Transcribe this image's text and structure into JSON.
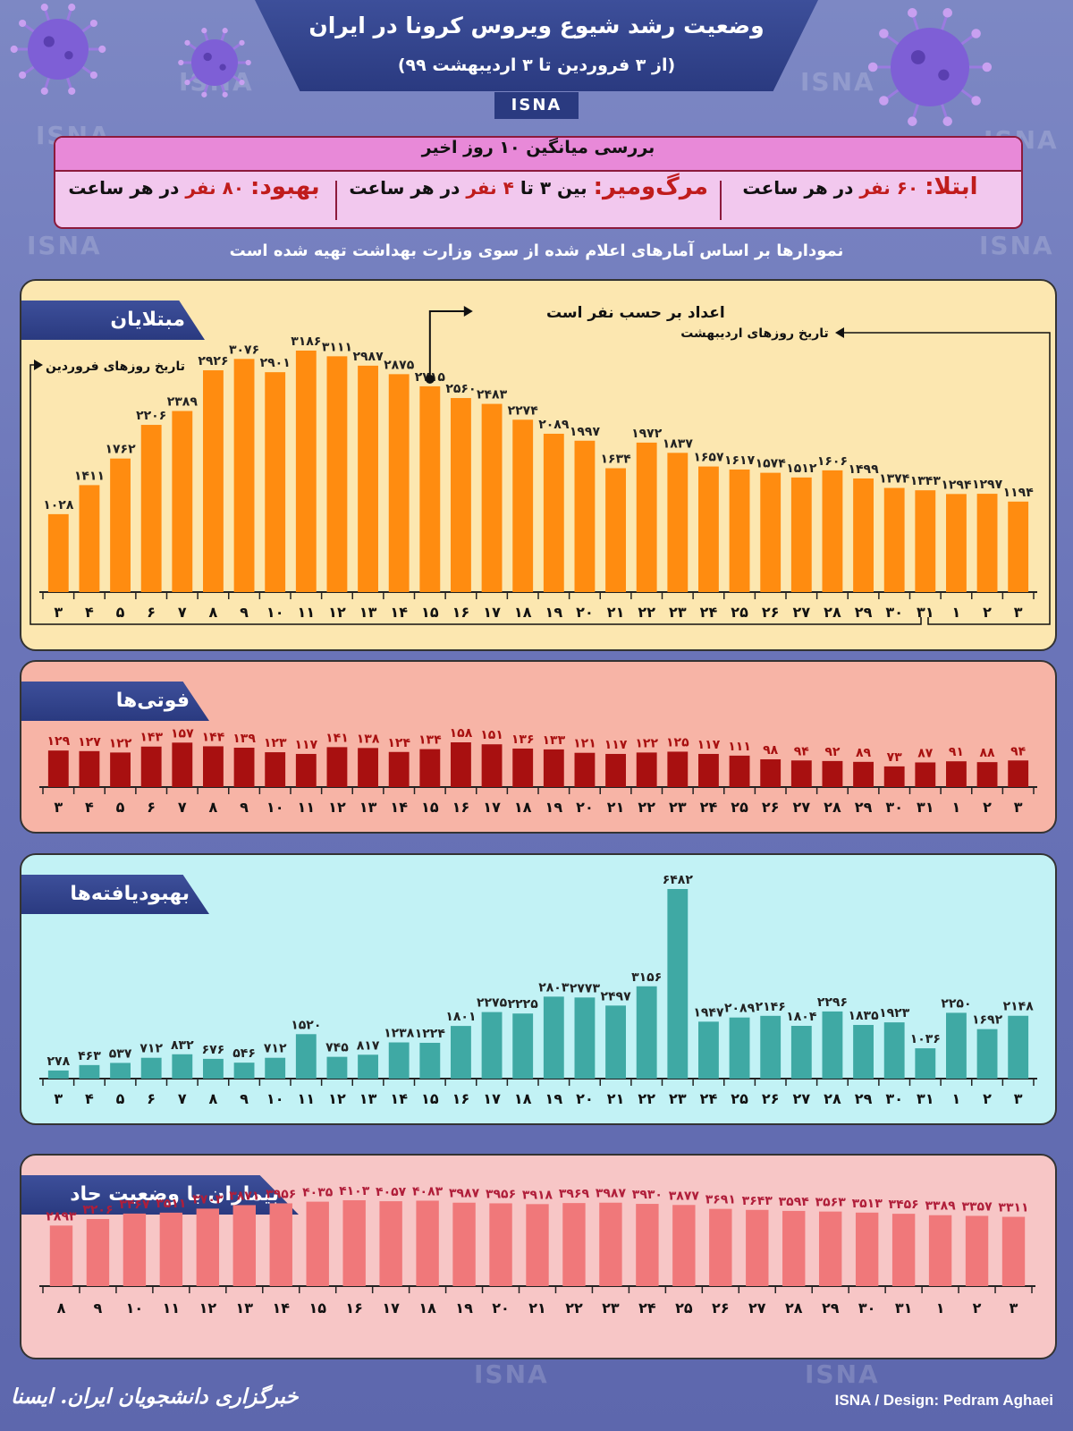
{
  "header": {
    "title": "وضعیت رشد شیوع ویروس کرونا در ایران",
    "subtitle": "(از ۳ فروردین تا ۳ اردیبهشت ۹۹)",
    "tab": "ISNA"
  },
  "watermark": "ISNA",
  "averages": {
    "title": "بررسی میانگین ۱۰ روز اخیر",
    "infection_label": "ابتلا:",
    "infection_value": "۶۰ نفر",
    "infection_unit": "در هر ساعت",
    "death_label": "مرگ‌ومیر:",
    "death_value_pre": "بین ۳ تا",
    "death_value": "۴ نفر",
    "death_unit": "در هر ساعت",
    "recovery_label": "بهبود:",
    "recovery_value": "۸۰ نفر",
    "recovery_unit": "در هر ساعت"
  },
  "note": "نمودارها بر اساس آمارهای اعلام شده از سوی وزارت بهداشت تهیه شده است",
  "annotations": {
    "numbers_per_person": "اعداد بر حسب نفر است",
    "farvardin_dates": "تاریخ روزهای فروردین",
    "ordibehesht_dates": "تاریخ روزهای اردیبهشت"
  },
  "footer": {
    "left": "خبرگزاری دانشجویان ایران. ایسنا",
    "right": "ISNA / Design: Pedram Aghaei"
  },
  "colors": {
    "infected": "#ff8c10",
    "deaths": "#a81010",
    "recovered": "#3fa9a4",
    "critical": "#f0787a",
    "infected_bg": "#fce7b0",
    "deaths_bg": "#f7b4a6",
    "recovered_bg": "#c2f2f5",
    "critical_bg": "#f7c6c6",
    "banner": "#2a3a80"
  },
  "chart_data": [
    {
      "type": "bar",
      "title": "مبتلایان",
      "categories": [
        "۳",
        "۴",
        "۵",
        "۶",
        "۷",
        "۸",
        "۹",
        "۱۰",
        "۱۱",
        "۱۲",
        "۱۳",
        "۱۴",
        "۱۵",
        "۱۶",
        "۱۷",
        "۱۸",
        "۱۹",
        "۲۰",
        "۲۱",
        "۲۲",
        "۲۳",
        "۲۴",
        "۲۵",
        "۲۶",
        "۲۷",
        "۲۸",
        "۲۹",
        "۳۰",
        "۳۱",
        "۱",
        "۲",
        "۳"
      ],
      "values": [
        1028,
        1411,
        1762,
        2206,
        2389,
        2926,
        3076,
        2901,
        3186,
        3111,
        2987,
        2875,
        2715,
        2560,
        2483,
        2274,
        2089,
        1997,
        1634,
        1972,
        1837,
        1657,
        1617,
        1574,
        1512,
        1606,
        1499,
        1374,
        1343,
        1294,
        1297,
        1194
      ],
      "labels": [
        "۱۰۲۸",
        "۱۴۱۱",
        "۱۷۶۲",
        "۲۲۰۶",
        "۲۳۸۹",
        "۲۹۲۶",
        "۳۰۷۶",
        "۲۹۰۱",
        "۳۱۸۶",
        "۳۱۱۱",
        "۲۹۸۷",
        "۲۸۷۵",
        "۲۷۱۵",
        "۲۵۶۰",
        "۲۴۸۳",
        "۲۲۷۴",
        "۲۰۸۹",
        "۱۹۹۷",
        "۱۶۳۴",
        "۱۹۷۲",
        "۱۸۳۷",
        "۱۶۵۷",
        "۱۶۱۷",
        "۱۵۷۴",
        "۱۵۱۲",
        "۱۶۰۶",
        "۱۴۹۹",
        "۱۳۷۴",
        "۱۳۴۳",
        "۱۲۹۴",
        "۱۲۹۷",
        "۱۱۹۴"
      ]
    },
    {
      "type": "bar",
      "title": "فوتی‌ها",
      "categories": [
        "۳",
        "۴",
        "۵",
        "۶",
        "۷",
        "۸",
        "۹",
        "۱۰",
        "۱۱",
        "۱۲",
        "۱۳",
        "۱۴",
        "۱۵",
        "۱۶",
        "۱۷",
        "۱۸",
        "۱۹",
        "۲۰",
        "۲۱",
        "۲۲",
        "۲۳",
        "۲۴",
        "۲۵",
        "۲۶",
        "۲۷",
        "۲۸",
        "۲۹",
        "۳۰",
        "۳۱",
        "۱",
        "۲",
        "۳"
      ],
      "values": [
        129,
        127,
        122,
        143,
        157,
        144,
        139,
        123,
        117,
        141,
        138,
        124,
        134,
        158,
        151,
        136,
        133,
        121,
        117,
        122,
        125,
        117,
        111,
        98,
        94,
        92,
        89,
        73,
        87,
        91,
        88,
        94
      ],
      "labels": [
        "۱۲۹",
        "۱۲۷",
        "۱۲۲",
        "۱۴۳",
        "۱۵۷",
        "۱۴۴",
        "۱۳۹",
        "۱۲۳",
        "۱۱۷",
        "۱۴۱",
        "۱۳۸",
        "۱۲۴",
        "۱۳۴",
        "۱۵۸",
        "۱۵۱",
        "۱۳۶",
        "۱۳۳",
        "۱۲۱",
        "۱۱۷",
        "۱۲۲",
        "۱۲۵",
        "۱۱۷",
        "۱۱۱",
        "۹۸",
        "۹۴",
        "۹۲",
        "۸۹",
        "۷۳",
        "۸۷",
        "۹۱",
        "۸۸",
        "۹۴"
      ]
    },
    {
      "type": "bar",
      "title": "بهبودیافته‌ها",
      "categories": [
        "۳",
        "۴",
        "۵",
        "۶",
        "۷",
        "۸",
        "۹",
        "۱۰",
        "۱۱",
        "۱۲",
        "۱۳",
        "۱۴",
        "۱۵",
        "۱۶",
        "۱۷",
        "۱۸",
        "۱۹",
        "۲۰",
        "۲۱",
        "۲۲",
        "۲۳",
        "۲۴",
        "۲۵",
        "۲۶",
        "۲۷",
        "۲۸",
        "۲۹",
        "۳۰",
        "۳۱",
        "۱",
        "۲",
        "۳"
      ],
      "values": [
        278,
        463,
        537,
        712,
        832,
        676,
        546,
        712,
        1520,
        745,
        817,
        1238,
        1224,
        1801,
        2275,
        2225,
        2803,
        2773,
        2497,
        3156,
        6482,
        1947,
        2089,
        2146,
        1804,
        2296,
        1835,
        1923,
        1036,
        2250,
        1692,
        2148
      ],
      "labels": [
        "۲۷۸",
        "۴۶۳",
        "۵۳۷",
        "۷۱۲",
        "۸۳۲",
        "۶۷۶",
        "۵۴۶",
        "۷۱۲",
        "۱۵۲۰",
        "۷۴۵",
        "۸۱۷",
        "۱۲۳۸",
        "۱۲۲۴",
        "۱۸۰۱",
        "۲۲۷۵",
        "۲۲۲۵",
        "۲۸۰۳",
        "۲۷۷۳",
        "۲۴۹۷",
        "۳۱۵۶",
        "۶۴۸۲",
        "۱۹۴۷",
        "۲۰۸۹",
        "۲۱۴۶",
        "۱۸۰۴",
        "۲۲۹۶",
        "۱۸۳۵",
        "۱۹۲۳",
        "۱۰۳۶",
        "۲۲۵۰",
        "۱۶۹۲",
        "۲۱۴۸"
      ]
    },
    {
      "type": "bar",
      "title": "بیماران با وضعیت حاد",
      "categories": [
        "۸",
        "۹",
        "۱۰",
        "۱۱",
        "۱۲",
        "۱۳",
        "۱۴",
        "۱۵",
        "۱۶",
        "۱۷",
        "۱۸",
        "۱۹",
        "۲۰",
        "۲۱",
        "۲۲",
        "۲۳",
        "۲۴",
        "۲۵",
        "۲۶",
        "۲۷",
        "۲۸",
        "۲۹",
        "۳۰",
        "۳۱",
        "۱",
        "۲",
        "۳"
      ],
      "values": [
        2893,
        3206,
        3467,
        3511,
        3703,
        3871,
        3956,
        4035,
        4103,
        4057,
        4083,
        3987,
        3956,
        3918,
        3969,
        3987,
        3930,
        3877,
        3691,
        3643,
        3594,
        3563,
        3513,
        3456,
        3389,
        3357,
        3311
      ],
      "labels": [
        "۲۸۹۳",
        "۳۲۰۶",
        "۳۴۶۷",
        "۳۵۱۱",
        "۳۷۰۳",
        "۳۸۷۱",
        "۳۹۵۶",
        "۴۰۳۵",
        "۴۱۰۳",
        "۴۰۵۷",
        "۴۰۸۳",
        "۳۹۸۷",
        "۳۹۵۶",
        "۳۹۱۸",
        "۳۹۶۹",
        "۳۹۸۷",
        "۳۹۳۰",
        "۳۸۷۷",
        "۳۶۹۱",
        "۳۶۴۳",
        "۳۵۹۴",
        "۳۵۶۳",
        "۳۵۱۳",
        "۳۴۵۶",
        "۳۳۸۹",
        "۳۳۵۷",
        "۳۳۱۱"
      ]
    }
  ]
}
